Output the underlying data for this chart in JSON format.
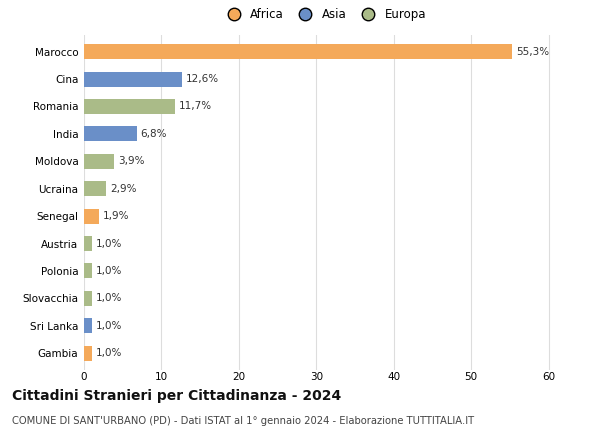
{
  "categories": [
    "Marocco",
    "Cina",
    "Romania",
    "India",
    "Moldova",
    "Ucraina",
    "Senegal",
    "Austria",
    "Polonia",
    "Slovacchia",
    "Sri Lanka",
    "Gambia"
  ],
  "values": [
    55.3,
    12.6,
    11.7,
    6.8,
    3.9,
    2.9,
    1.9,
    1.0,
    1.0,
    1.0,
    1.0,
    1.0
  ],
  "labels": [
    "55,3%",
    "12,6%",
    "11,7%",
    "6,8%",
    "3,9%",
    "2,9%",
    "1,9%",
    "1,0%",
    "1,0%",
    "1,0%",
    "1,0%",
    "1,0%"
  ],
  "colors": [
    "#F4A95A",
    "#6A8FC8",
    "#AABB88",
    "#6A8FC8",
    "#AABB88",
    "#AABB88",
    "#F4A95A",
    "#AABB88",
    "#AABB88",
    "#AABB88",
    "#6A8FC8",
    "#F4A95A"
  ],
  "legend_labels": [
    "Africa",
    "Asia",
    "Europa"
  ],
  "legend_colors": [
    "#F4A95A",
    "#6A8FC8",
    "#AABB88"
  ],
  "title": "Cittadini Stranieri per Cittadinanza - 2024",
  "subtitle": "COMUNE DI SANT'URBANO (PD) - Dati ISTAT al 1° gennaio 2024 - Elaborazione TUTTITALIA.IT",
  "xlim": [
    0,
    62
  ],
  "xticks": [
    0,
    10,
    20,
    30,
    40,
    50,
    60
  ],
  "bg_color": "#ffffff",
  "grid_color": "#dddddd",
  "bar_height": 0.55,
  "label_fontsize": 7.5,
  "tick_fontsize": 7.5,
  "legend_fontsize": 8.5,
  "title_fontsize": 10,
  "subtitle_fontsize": 7.2
}
